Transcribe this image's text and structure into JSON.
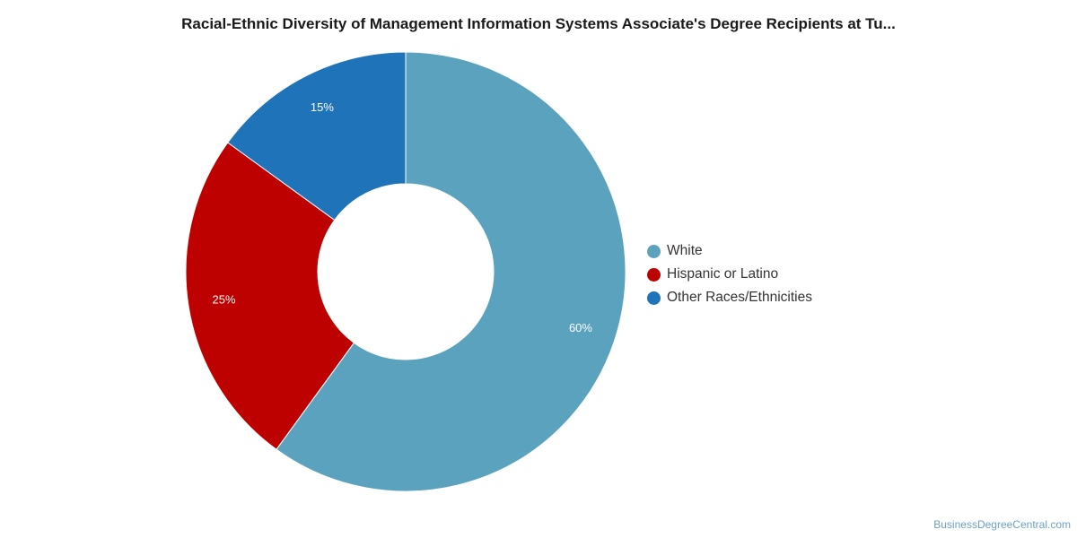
{
  "title": "Racial-Ethnic Diversity of Management Information Systems Associate's Degree Recipients at Tu...",
  "source": "BusinessDegreeCentral.com",
  "chart_data": {
    "type": "pie",
    "donut": true,
    "title": "Racial-Ethnic Diversity of Management Information Systems Associate's Degree Recipients at Tu...",
    "legend_position": "right",
    "slices": [
      {
        "label": "White",
        "value": 60,
        "value_label": "60%",
        "color": "#5ba2bf"
      },
      {
        "label": "Hispanic or Latino",
        "value": 25,
        "value_label": "25%",
        "color": "#bd0000"
      },
      {
        "label": "Other Races/Ethnicities",
        "value": 15,
        "value_label": "15%",
        "color": "#1f73b8"
      }
    ]
  }
}
